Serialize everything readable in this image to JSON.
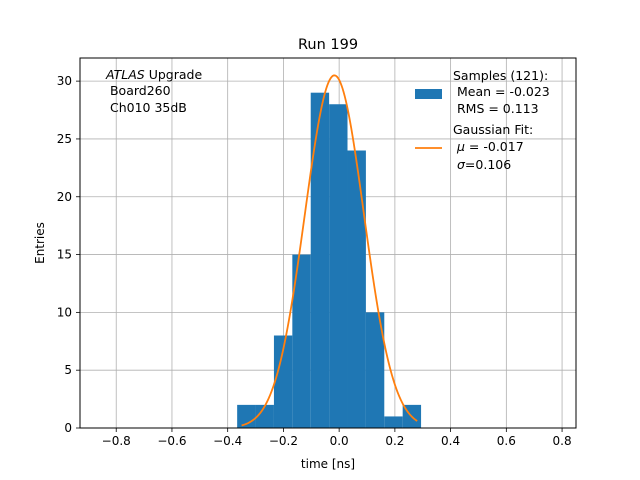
{
  "chart_data": {
    "type": "bar",
    "title": "Run 199",
    "xlabel": "time [ns]",
    "ylabel": "Entries",
    "xlim": [
      -0.93,
      0.85
    ],
    "ylim": [
      0,
      32
    ],
    "xticks": [
      -0.8,
      -0.6,
      -0.4,
      -0.2,
      0.0,
      0.2,
      0.4,
      0.6,
      0.8
    ],
    "xtick_labels": [
      "−0.8",
      "−0.6",
      "−0.4",
      "−0.2",
      "0.0",
      "0.2",
      "0.4",
      "0.6",
      "0.8"
    ],
    "yticks": [
      0,
      5,
      10,
      15,
      20,
      25,
      30
    ],
    "ytick_labels": [
      "0",
      "5",
      "10",
      "15",
      "20",
      "25",
      "30"
    ],
    "grid": true,
    "bin_edges": [
      -0.366,
      -0.3,
      -0.234,
      -0.168,
      -0.102,
      -0.036,
      0.03,
      0.096,
      0.162,
      0.228,
      0.294
    ],
    "bar_values": [
      2,
      2,
      8,
      15,
      29,
      28,
      24,
      10,
      1,
      2
    ],
    "gaussian_fit": {
      "amplitude": 30.5,
      "mu": -0.017,
      "sigma": 0.106,
      "x_range": [
        -0.35,
        0.28
      ]
    },
    "colors": {
      "histogram": "#1f77b4",
      "fit": "#ff7f0e",
      "grid": "#b0b0b0"
    },
    "annotation": {
      "line1_italic": "ATLAS",
      "line1_rest": " Upgrade",
      "line2": " Board260",
      "line3": " Ch010 35dB"
    },
    "legend": {
      "placement": "top-right",
      "samples_lines": [
        "Samples (121):",
        " Mean = -0.023",
        " RMS = 0.113"
      ],
      "fit_title": "Gaussian Fit:",
      "fit_mu_symbol": "μ",
      "fit_mu_rest": " = -0.017",
      "fit_sigma_symbol": "σ",
      "fit_sigma_rest": "=0.106"
    }
  }
}
